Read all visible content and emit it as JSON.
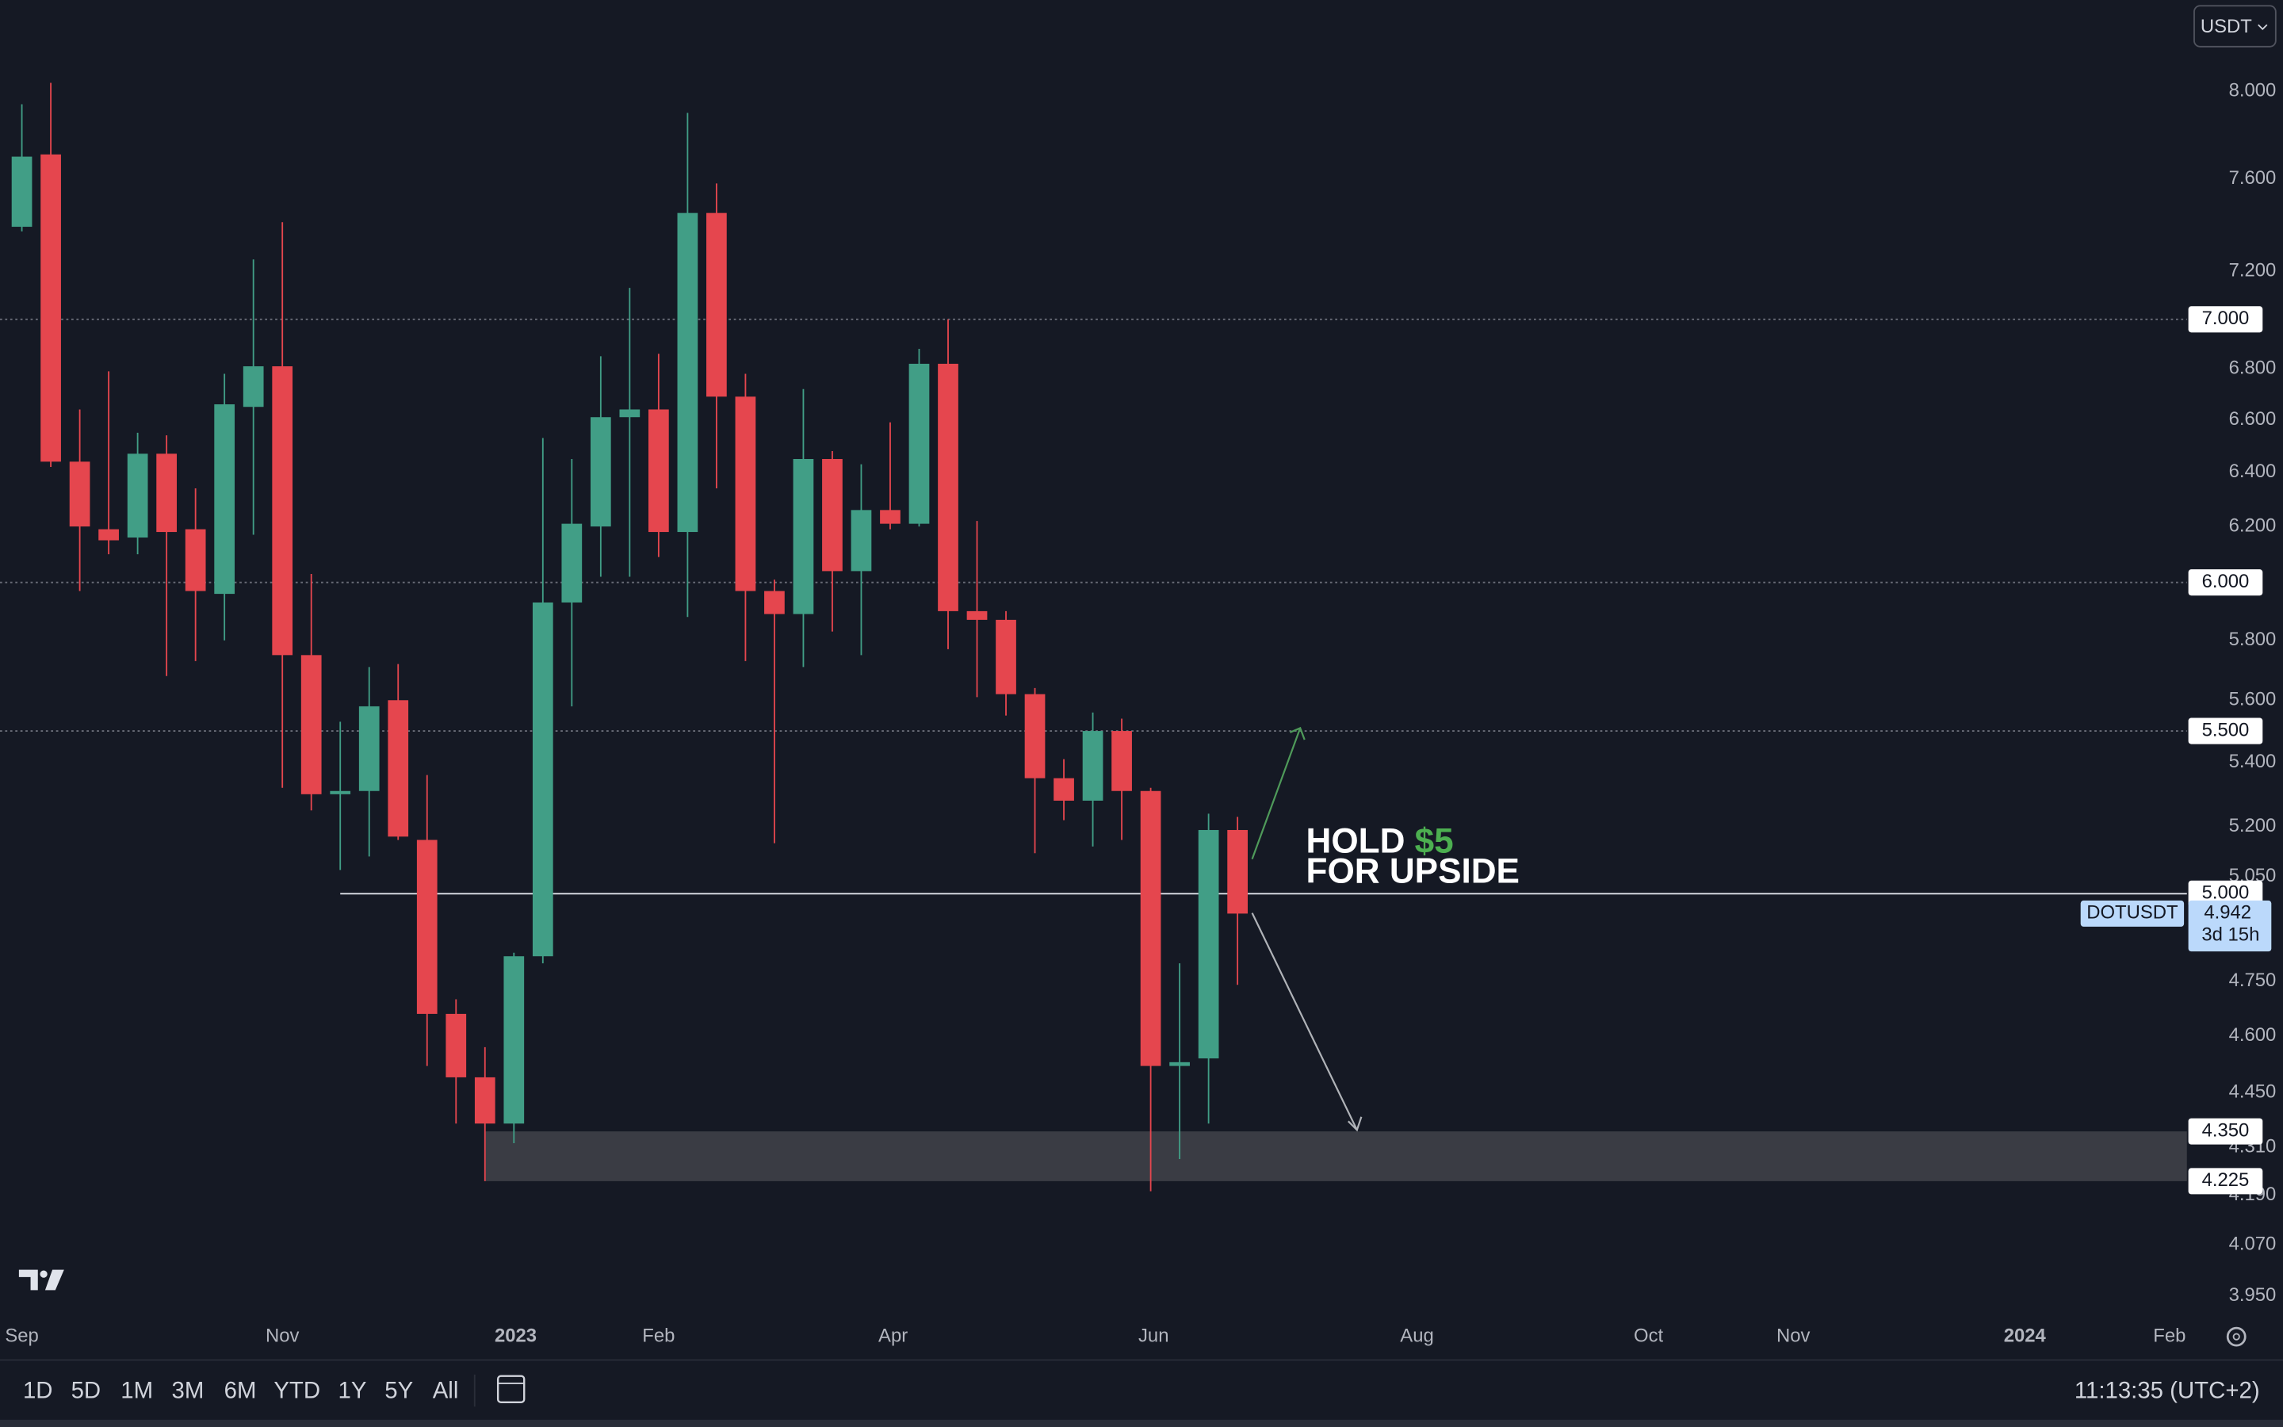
{
  "chart_data": {
    "type": "candlestick",
    "log_scale": true,
    "grid": false,
    "up_color": "#419e86",
    "down_color": "#e5464e",
    "x": [
      0,
      1,
      2,
      3,
      4,
      5,
      6,
      7,
      8,
      9,
      10,
      11,
      12,
      13,
      14,
      15,
      16,
      17,
      18,
      19,
      20,
      21,
      22,
      23,
      24,
      25,
      26,
      27,
      28,
      29,
      30,
      31,
      32,
      33,
      34,
      35,
      36,
      37,
      38,
      39,
      40,
      41,
      42
    ],
    "open": [
      7.39,
      7.71,
      6.44,
      6.19,
      6.16,
      6.47,
      6.19,
      5.96,
      6.65,
      6.81,
      5.75,
      5.3,
      5.31,
      5.6,
      5.16,
      4.66,
      4.49,
      4.37,
      4.82,
      5.93,
      6.2,
      6.61,
      6.64,
      6.18,
      7.45,
      6.69,
      5.97,
      5.89,
      6.45,
      6.04,
      6.26,
      6.21,
      6.82,
      5.9,
      5.87,
      5.62,
      5.35,
      5.28,
      5.5,
      5.31,
      4.52,
      4.54,
      5.19
    ],
    "high": [
      7.94,
      8.04,
      6.64,
      6.79,
      6.55,
      6.54,
      6.34,
      6.78,
      7.25,
      7.41,
      6.03,
      5.53,
      5.71,
      5.72,
      5.36,
      4.7,
      4.57,
      4.83,
      6.53,
      6.45,
      6.85,
      7.13,
      6.86,
      7.9,
      7.58,
      6.78,
      6.01,
      6.72,
      6.48,
      6.43,
      6.59,
      6.88,
      7.0,
      6.22,
      5.9,
      5.64,
      5.41,
      5.56,
      5.54,
      5.32,
      4.8,
      5.24,
      5.23
    ],
    "low": [
      7.37,
      6.42,
      5.97,
      6.1,
      6.1,
      5.68,
      5.73,
      5.8,
      6.17,
      5.32,
      5.25,
      5.07,
      5.11,
      5.16,
      4.52,
      4.37,
      4.225,
      4.32,
      4.8,
      5.58,
      6.02,
      6.02,
      6.09,
      5.88,
      6.34,
      5.73,
      5.15,
      5.71,
      5.83,
      5.75,
      6.19,
      6.2,
      5.77,
      5.61,
      5.55,
      5.12,
      5.22,
      5.14,
      5.16,
      4.2,
      4.28,
      4.37,
      4.74
    ],
    "close": [
      7.7,
      6.44,
      6.2,
      6.15,
      6.47,
      6.18,
      5.97,
      6.66,
      6.81,
      5.75,
      5.3,
      5.31,
      5.58,
      5.17,
      4.66,
      4.49,
      4.37,
      4.82,
      5.93,
      6.21,
      6.61,
      6.64,
      6.18,
      7.45,
      6.69,
      5.97,
      5.89,
      6.45,
      6.04,
      6.26,
      6.21,
      6.82,
      5.9,
      5.87,
      5.62,
      5.35,
      5.28,
      5.5,
      5.31,
      4.52,
      4.53,
      5.19,
      4.942
    ],
    "xlim": [
      -0.755,
      74.8
    ],
    "xticks": [
      {
        "value": 0,
        "label": "Sep"
      },
      {
        "value": 9.0,
        "label": "Nov"
      },
      {
        "value": 17.06,
        "label": "2023"
      },
      {
        "value": 22.0,
        "label": "Feb"
      },
      {
        "value": 30.1,
        "label": "Apr"
      },
      {
        "value": 39.1,
        "label": "Jun"
      },
      {
        "value": 48.2,
        "label": "Aug"
      },
      {
        "value": 56.2,
        "label": "Oct"
      },
      {
        "value": 61.2,
        "label": "Nov"
      },
      {
        "value": 69.2,
        "label": "2024"
      },
      {
        "value": 74.2,
        "label": "Feb"
      }
    ],
    "ylim": [
      3.9,
      8.44
    ],
    "yticks": [
      {
        "value": 8,
        "label": "8.000"
      },
      {
        "value": 7.6,
        "label": "7.600"
      },
      {
        "value": 7.2,
        "label": "7.200"
      },
      {
        "value": 6.8,
        "label": "6.800"
      },
      {
        "value": 6.6,
        "label": "6.600"
      },
      {
        "value": 6.4,
        "label": "6.400"
      },
      {
        "value": 6.2,
        "label": "6.200"
      },
      {
        "value": 5.8,
        "label": "5.800"
      },
      {
        "value": 5.6,
        "label": "5.600"
      },
      {
        "value": 5.4,
        "label": "5.400"
      },
      {
        "value": 5.2,
        "label": "5.200"
      },
      {
        "value": 5.05,
        "label": "5.050"
      },
      {
        "value": 4.75,
        "label": "4.750"
      },
      {
        "value": 4.6,
        "label": "4.600"
      },
      {
        "value": 4.45,
        "label": "4.450"
      },
      {
        "value": 4.31,
        "label": "4.310"
      },
      {
        "value": 4.19,
        "label": "4.190"
      },
      {
        "value": 4.07,
        "label": "4.070"
      },
      {
        "value": 3.95,
        "label": "3.950"
      }
    ],
    "levels": [
      {
        "value": 7,
        "label": "7.000",
        "style": "dotted"
      },
      {
        "value": 6,
        "label": "6.000",
        "style": "dotted"
      },
      {
        "value": 5.5,
        "label": "5.500",
        "style": "dotted"
      },
      {
        "value": 5,
        "label": "5.000",
        "style": "solid",
        "start": 11
      }
    ],
    "zone": {
      "start": 16,
      "high": {
        "value": 4.35,
        "label": "4.350"
      },
      "low": {
        "value": 4.225,
        "label": "4.225"
      }
    },
    "current_price": {
      "symbol": "DOTUSDT",
      "value": 4.942,
      "label": "4.942",
      "countdown": "3d 15h"
    },
    "annotation": {
      "line1": "HOLD",
      "highlight": "$5",
      "line2": "FOR UPSIDE"
    }
  },
  "currency": "USDT",
  "toolbar": {
    "ranges": [
      "1D",
      "5D",
      "1M",
      "3M",
      "6M",
      "YTD",
      "1Y",
      "5Y",
      "All"
    ],
    "clock": "11:13:35 (UTC+2)"
  }
}
